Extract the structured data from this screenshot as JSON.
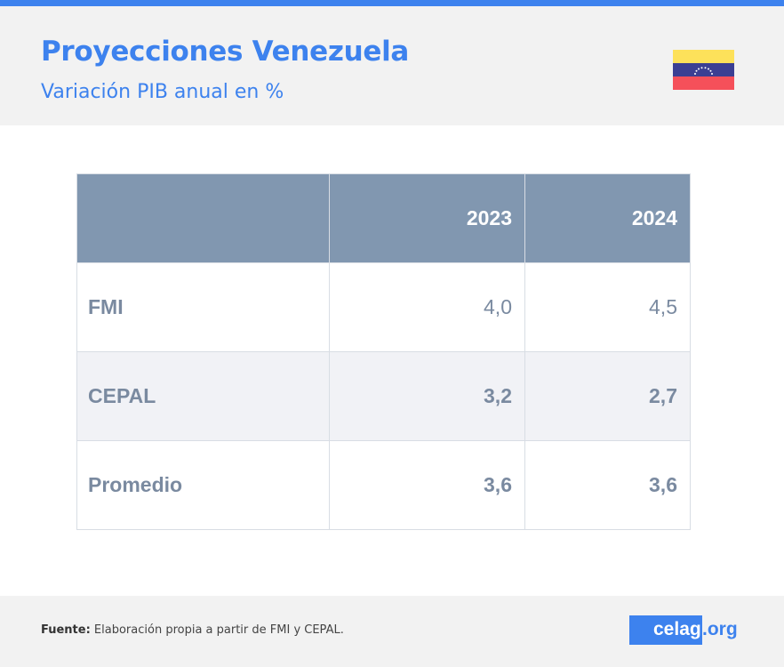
{
  "header": {
    "title": "Proyecciones Venezuela",
    "subtitle": "Variación PIB anual en %",
    "flag_icon": "venezuela-flag-icon"
  },
  "table": {
    "columns": [
      "",
      "2023",
      "2024"
    ],
    "rows": [
      {
        "label": "FMI",
        "values": [
          "4,0",
          "4,5"
        ],
        "bold": false
      },
      {
        "label": "CEPAL",
        "values": [
          "3,2",
          "2,7"
        ],
        "bold": true
      },
      {
        "label": "Promedio",
        "values": [
          "3,6",
          "3,6"
        ],
        "bold": true
      }
    ]
  },
  "footer": {
    "source_label": "Fuente:",
    "source_text": " Elaboración propia a partir de FMI y CEPAL.",
    "logo_main": "celag",
    "logo_suffix": ".org"
  },
  "colors": {
    "accent": "#3d82ee",
    "header_row": "#8197b0",
    "text": "#7a8aa0"
  }
}
